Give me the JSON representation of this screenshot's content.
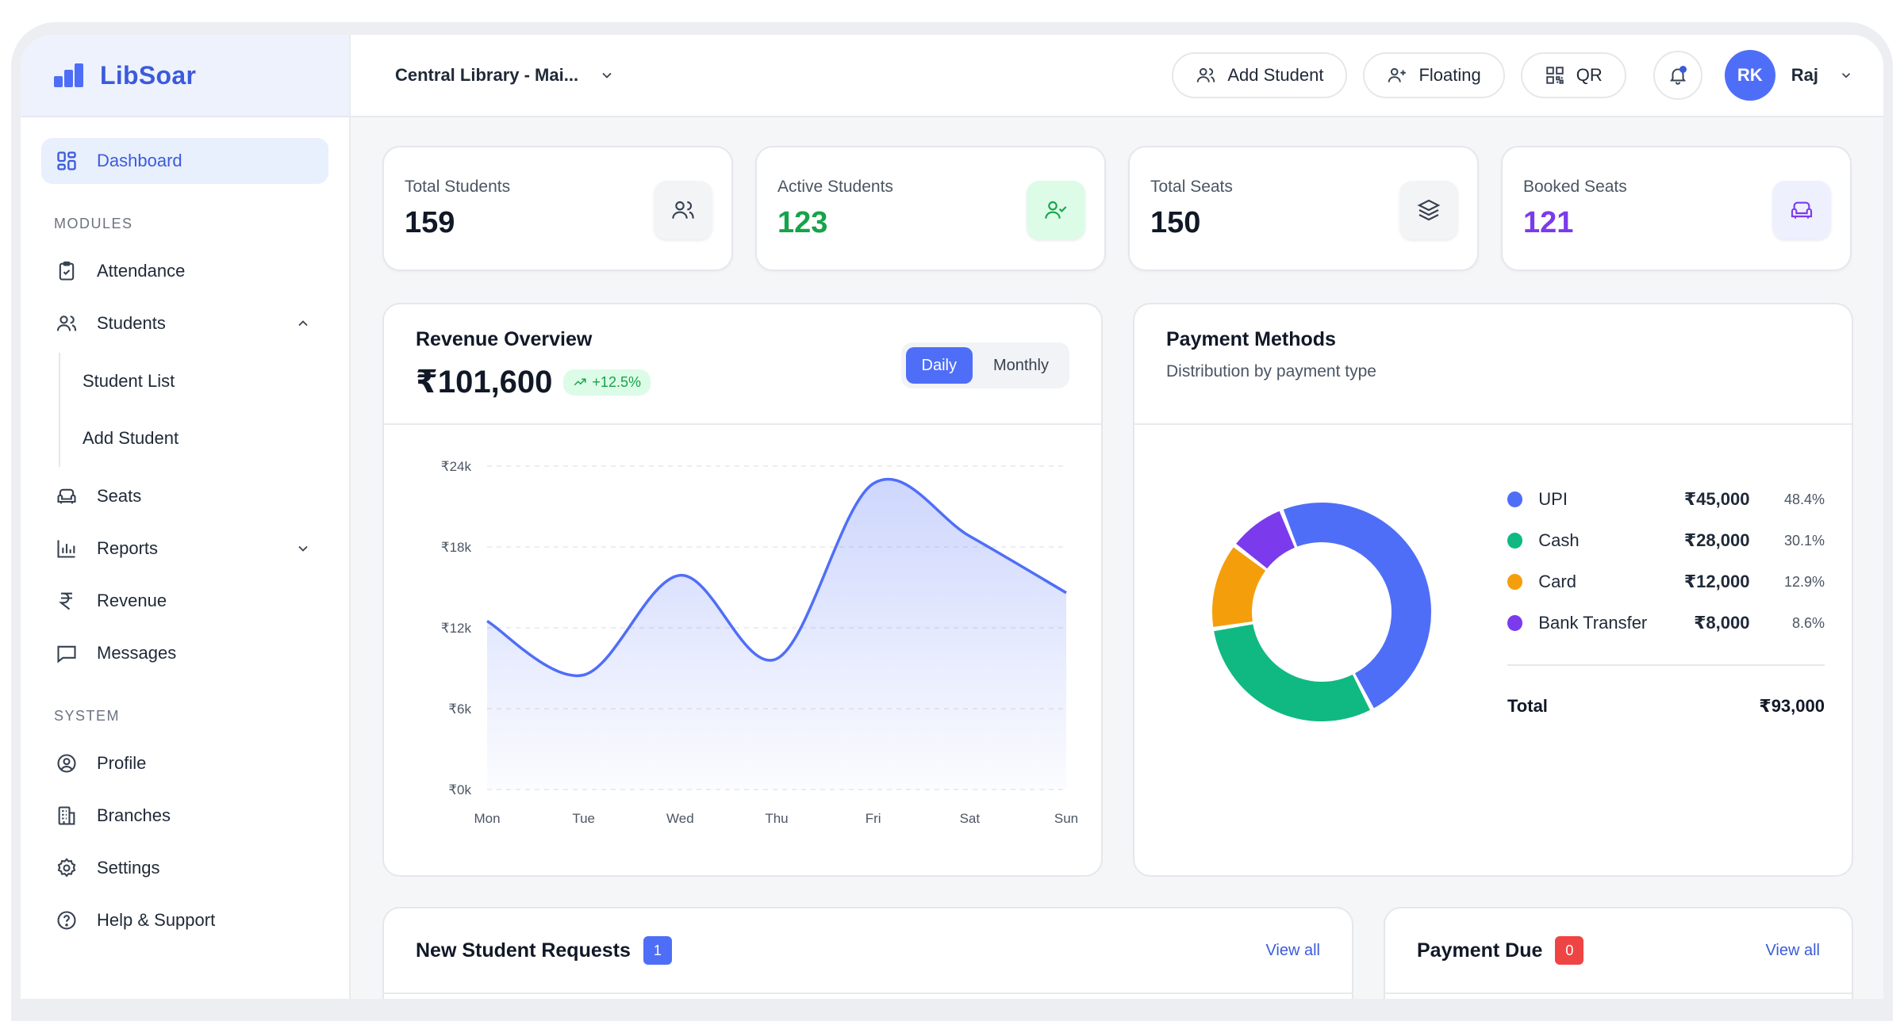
{
  "app": {
    "name": "LibSoar"
  },
  "sidebar": {
    "dashboard": "Dashboard",
    "modules_label": "MODULES",
    "modules": {
      "attendance": "Attendance",
      "students": "Students",
      "student_list": "Student List",
      "add_student": "Add Student",
      "seats": "Seats",
      "reports": "Reports",
      "revenue": "Revenue",
      "messages": "Messages"
    },
    "system_label": "SYSTEM",
    "system": {
      "profile": "Profile",
      "branches": "Branches",
      "settings": "Settings",
      "help": "Help & Support"
    }
  },
  "topbar": {
    "branch": "Central Library - Mai...",
    "add_student": "Add Student",
    "floating": "Floating",
    "qr": "QR",
    "avatar_initials": "RK",
    "user_name": "Raj"
  },
  "stats": [
    {
      "label": "Total Students",
      "value": "159",
      "color": "#111827"
    },
    {
      "label": "Active Students",
      "value": "123",
      "color": "#16a34a"
    },
    {
      "label": "Total Seats",
      "value": "150",
      "color": "#111827"
    },
    {
      "label": "Booked Seats",
      "value": "121",
      "color": "#7c3aed"
    }
  ],
  "revenue": {
    "title": "Revenue Overview",
    "amount": "₹101,600",
    "growth": "+12.5%",
    "toggle_daily": "Daily",
    "toggle_monthly": "Monthly"
  },
  "chart_data": {
    "type": "area",
    "categories": [
      "Mon",
      "Tue",
      "Wed",
      "Thu",
      "Fri",
      "Sat",
      "Sun"
    ],
    "values": [
      12500,
      8500,
      15900,
      9700,
      22700,
      18800,
      14600
    ],
    "y_ticks": [
      "₹0k",
      "₹6k",
      "₹12k",
      "₹18k",
      "₹24k"
    ],
    "ylim": [
      0,
      24000
    ],
    "grid": true,
    "color": "#4f6ef7"
  },
  "payment": {
    "title": "Payment Methods",
    "subtitle": "Distribution by payment type",
    "items": [
      {
        "name": "UPI",
        "value": "₹45,000",
        "pct": "48.4%",
        "share": 48.4,
        "color": "#4f6ef7"
      },
      {
        "name": "Cash",
        "value": "₹28,000",
        "pct": "30.1%",
        "share": 30.1,
        "color": "#10b981"
      },
      {
        "name": "Card",
        "value": "₹12,000",
        "pct": "12.9%",
        "share": 12.9,
        "color": "#f59e0b"
      },
      {
        "name": "Bank Transfer",
        "value": "₹8,000",
        "pct": "8.6%",
        "share": 8.6,
        "color": "#7c3aed"
      }
    ],
    "total_label": "Total",
    "total_value": "₹93,000"
  },
  "requests": {
    "title": "New Student Requests",
    "count": "1",
    "view_all": "View all"
  },
  "due": {
    "title": "Payment Due",
    "count": "0",
    "view_all": "View all"
  }
}
